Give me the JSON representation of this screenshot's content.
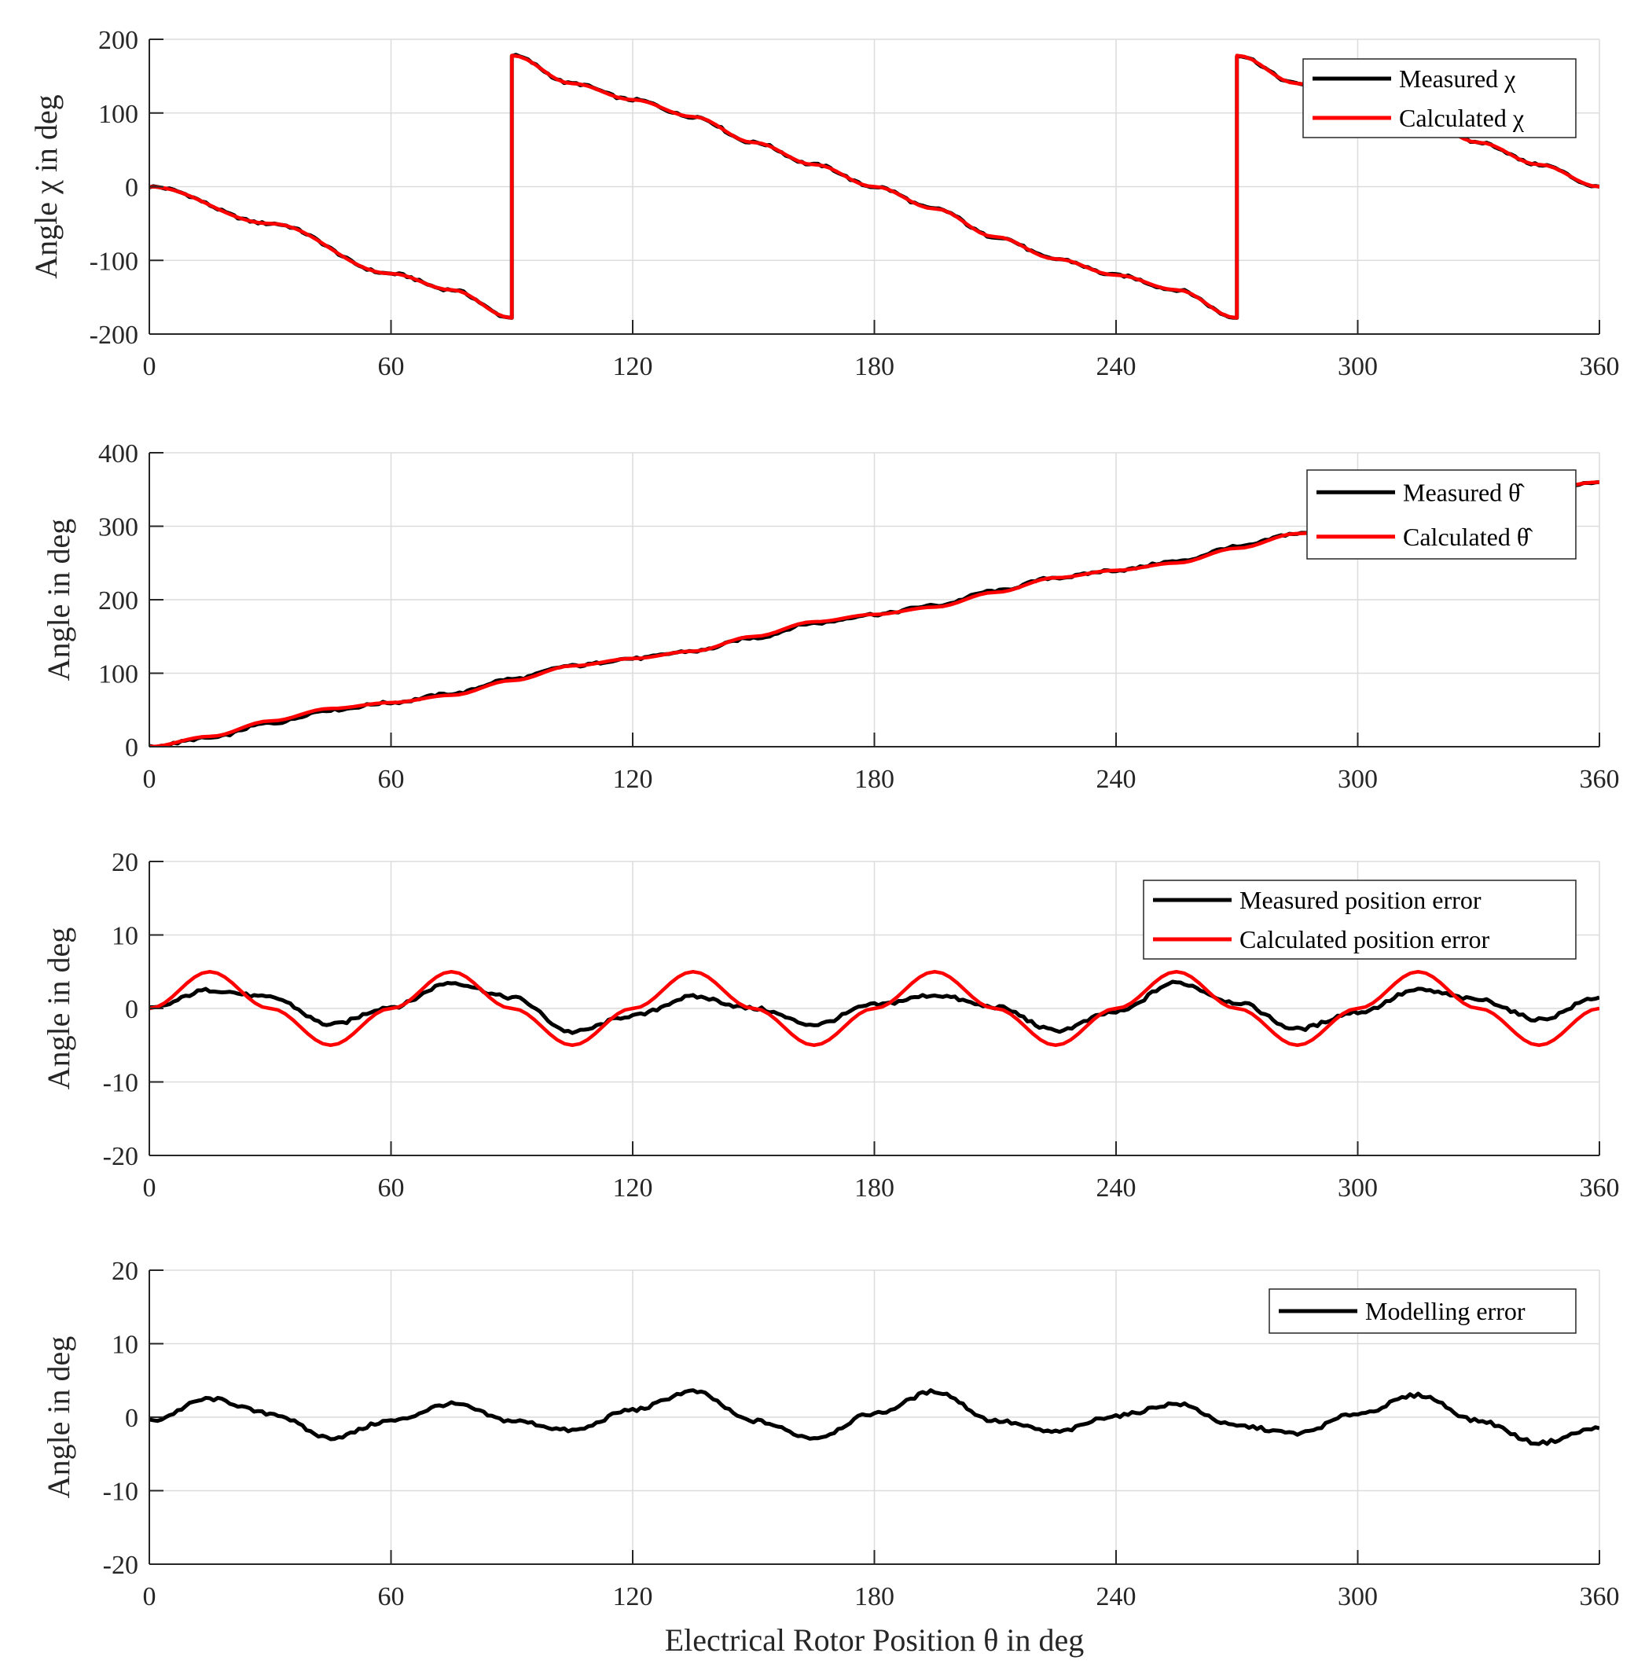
{
  "chart_data": [
    {
      "type": "line",
      "ylabel": "Angle χ in deg",
      "xlabel": "",
      "xlim": [
        0,
        360
      ],
      "ylim": [
        -200,
        200
      ],
      "x_ticks": [
        "0",
        "60",
        "120",
        "180",
        "240",
        "300",
        "360"
      ],
      "y_ticks": [
        "-200",
        "-100",
        "0",
        "100",
        "200"
      ],
      "grid": true,
      "legend_position": "top-right",
      "series": [
        {
          "name": "Measured χ",
          "color": "#000000",
          "x": [
            0,
            30,
            60,
            75,
            90,
            90,
            105,
            120,
            135,
            150,
            165,
            180,
            195,
            210,
            225,
            240,
            255,
            270,
            270,
            285,
            300,
            315,
            330,
            345,
            360
          ],
          "values": [
            0,
            -50,
            -118,
            -140,
            -178,
            178,
            140,
            118,
            95,
            60,
            30,
            0,
            -30,
            -68,
            -98,
            -120,
            -140,
            -178,
            178,
            140,
            118,
            95,
            60,
            30,
            0
          ]
        },
        {
          "name": "Calculated χ",
          "color": "#ff0000",
          "x": [
            0,
            30,
            60,
            75,
            90,
            90,
            105,
            120,
            135,
            150,
            165,
            180,
            195,
            210,
            225,
            240,
            255,
            270,
            270,
            285,
            300,
            315,
            330,
            345,
            360
          ],
          "values": [
            0,
            -50,
            -118,
            -140,
            -178,
            178,
            140,
            118,
            95,
            60,
            30,
            0,
            -30,
            -68,
            -98,
            -120,
            -140,
            -178,
            178,
            140,
            118,
            95,
            60,
            30,
            0
          ]
        }
      ]
    },
    {
      "type": "line",
      "ylabel": "Angle in deg",
      "xlabel": "",
      "xlim": [
        0,
        360
      ],
      "ylim": [
        0,
        400
      ],
      "x_ticks": [
        "0",
        "60",
        "120",
        "180",
        "240",
        "300",
        "360"
      ],
      "y_ticks": [
        "0",
        "100",
        "200",
        "300",
        "400"
      ],
      "grid": true,
      "legend_position": "top-right",
      "series": [
        {
          "name": "Measured θ̂",
          "color": "#000000",
          "x": [
            0,
            15,
            30,
            45,
            60,
            75,
            90,
            105,
            120,
            135,
            150,
            165,
            180,
            195,
            210,
            225,
            240,
            255,
            270,
            285,
            300,
            315,
            330,
            345,
            360
          ],
          "values": [
            0,
            12,
            32,
            50,
            60,
            72,
            92,
            110,
            120,
            130,
            148,
            168,
            180,
            192,
            212,
            230,
            240,
            252,
            272,
            290,
            300,
            312,
            332,
            350,
            360
          ]
        },
        {
          "name": "Calculated θ̂",
          "color": "#ff0000",
          "x": [
            0,
            15,
            30,
            45,
            60,
            75,
            90,
            105,
            120,
            135,
            150,
            165,
            180,
            195,
            210,
            225,
            240,
            255,
            270,
            285,
            300,
            315,
            330,
            345,
            360
          ],
          "values": [
            0,
            14,
            35,
            52,
            60,
            70,
            90,
            110,
            120,
            130,
            150,
            170,
            180,
            190,
            210,
            230,
            240,
            250,
            270,
            290,
            300,
            310,
            330,
            350,
            360
          ]
        }
      ]
    },
    {
      "type": "line",
      "ylabel": "Angle in deg",
      "xlabel": "",
      "xlim": [
        0,
        360
      ],
      "ylim": [
        -20,
        20
      ],
      "x_ticks": [
        "0",
        "60",
        "120",
        "180",
        "240",
        "300",
        "360"
      ],
      "y_ticks": [
        "-20",
        "-10",
        "0",
        "10",
        "20"
      ],
      "grid": true,
      "legend_position": "top-right",
      "series": [
        {
          "name": "Measured position error",
          "color": "#000000",
          "x": [
            0,
            15,
            30,
            45,
            60,
            75,
            90,
            105,
            120,
            135,
            150,
            165,
            180,
            195,
            210,
            225,
            240,
            255,
            270,
            285,
            300,
            315,
            330,
            345,
            360
          ],
          "values": [
            0,
            2.5,
            1.5,
            -2.2,
            0.2,
            3.5,
            1.5,
            -3.2,
            -1.0,
            1.6,
            0.0,
            -2.2,
            0.5,
            1.8,
            0.2,
            -3.0,
            -0.5,
            3.5,
            0.8,
            -2.8,
            -0.5,
            2.5,
            1.2,
            -1.5,
            1.5
          ]
        },
        {
          "name": "Calculated position error",
          "color": "#ff0000",
          "x": [
            0,
            15,
            30,
            45,
            60,
            75,
            90,
            105,
            120,
            135,
            150,
            165,
            180,
            195,
            210,
            225,
            240,
            255,
            270,
            285,
            300,
            315,
            330,
            345,
            360
          ],
          "values": [
            0,
            5,
            0,
            -5,
            0,
            5,
            0,
            -5,
            0,
            5,
            0,
            -5,
            0,
            5,
            0,
            -5,
            0,
            5,
            0,
            -5,
            0,
            5,
            0,
            -5,
            0
          ]
        }
      ]
    },
    {
      "type": "line",
      "ylabel": "Angle in deg",
      "xlabel": "Electrical Rotor Position θ in deg",
      "xlim": [
        0,
        360
      ],
      "ylim": [
        -20,
        20
      ],
      "x_ticks": [
        "0",
        "60",
        "120",
        "180",
        "240",
        "300",
        "360"
      ],
      "y_ticks": [
        "-20",
        "-10",
        "0",
        "10",
        "20"
      ],
      "grid": true,
      "legend_position": "top-right",
      "series": [
        {
          "name": "Modelling error",
          "color": "#000000",
          "x": [
            0,
            15,
            30,
            45,
            60,
            75,
            90,
            105,
            120,
            135,
            150,
            165,
            180,
            195,
            210,
            225,
            240,
            255,
            270,
            285,
            300,
            315,
            330,
            345,
            360
          ],
          "values": [
            -0.5,
            2.5,
            0.5,
            -2.8,
            -0.5,
            1.8,
            -0.5,
            -1.8,
            1.0,
            3.5,
            -0.5,
            -2.8,
            0.5,
            3.5,
            -0.5,
            -2.0,
            0.2,
            1.8,
            -1.2,
            -2.2,
            0.5,
            3.0,
            -0.5,
            -3.5,
            -1.5
          ]
        }
      ]
    }
  ]
}
